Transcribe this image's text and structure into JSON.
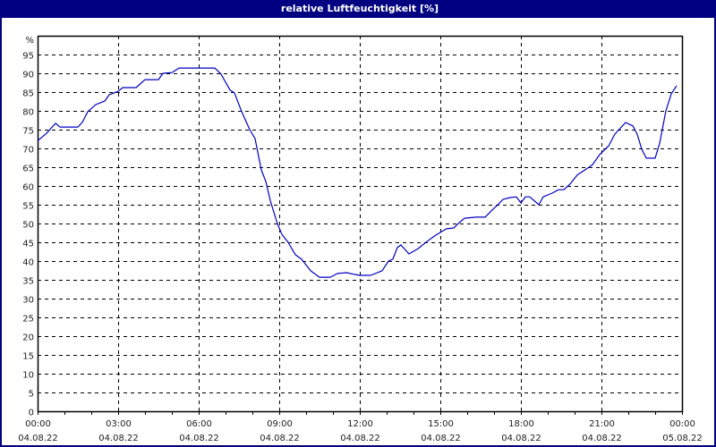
{
  "window": {
    "title": "relative Luftfeuchtigkeit [%]"
  },
  "colors": {
    "titlebar": "#000080",
    "line": "#0000c0",
    "grid": "#000000",
    "background": "#ffffff"
  },
  "chart_data": {
    "type": "line",
    "title": "relative Luftfeuchtigkeit [%]",
    "xlabel": "",
    "ylabel": "%",
    "ylim": [
      0,
      100
    ],
    "xlim_hours": [
      0,
      24
    ],
    "grid": true,
    "legend": null,
    "y_ticks": [
      "0",
      "5",
      "10",
      "15",
      "20",
      "25",
      "30",
      "35",
      "40",
      "45",
      "50",
      "55",
      "60",
      "65",
      "70",
      "75",
      "80",
      "85",
      "90",
      "95"
    ],
    "y_unit_label": "%",
    "x_ticks": [
      {
        "time": "00:00",
        "date": "04.08.22",
        "hour": 0
      },
      {
        "time": "03:00",
        "date": "04.08.22",
        "hour": 3
      },
      {
        "time": "06:00",
        "date": "04.08.22",
        "hour": 6
      },
      {
        "time": "09:00",
        "date": "04.08.22",
        "hour": 9
      },
      {
        "time": "12:00",
        "date": "04.08.22",
        "hour": 12
      },
      {
        "time": "15:00",
        "date": "04.08.22",
        "hour": 15
      },
      {
        "time": "18:00",
        "date": "04.08.22",
        "hour": 18
      },
      {
        "time": "21:00",
        "date": "04.08.22",
        "hour": 21
      },
      {
        "time": "00:00",
        "date": "05.08.22",
        "hour": 24
      }
    ],
    "series": [
      {
        "name": "relative Luftfeuchtigkeit",
        "x_hours": [
          0,
          0.33,
          0.67,
          0.83,
          1.5,
          1.67,
          1.87,
          2.17,
          2.5,
          2.67,
          3.0,
          3.17,
          3.67,
          4.0,
          4.5,
          4.67,
          5.0,
          5.27,
          6.6,
          6.83,
          7.17,
          7.33,
          7.6,
          7.9,
          8.1,
          8.33,
          8.5,
          8.67,
          8.93,
          9.1,
          9.33,
          9.6,
          9.83,
          10.17,
          10.5,
          10.9,
          11.17,
          11.5,
          11.83,
          12.0,
          12.4,
          12.83,
          13.07,
          13.23,
          13.4,
          13.53,
          13.83,
          14.17,
          14.5,
          14.83,
          15.23,
          15.5,
          15.67,
          15.9,
          16.33,
          16.67,
          16.93,
          17.17,
          17.33,
          17.6,
          17.83,
          18.0,
          18.17,
          18.33,
          18.67,
          18.83,
          19.17,
          19.4,
          19.6,
          19.83,
          20.1,
          20.5,
          20.67,
          20.93,
          21.27,
          21.5,
          21.9,
          22.17,
          22.33,
          22.5,
          22.67,
          23.0,
          23.17,
          23.4,
          23.6,
          23.8
        ],
        "values": [
          72,
          74,
          76.7,
          75.7,
          75.7,
          77,
          79.8,
          81.7,
          82.6,
          84.3,
          85.2,
          86.2,
          86.2,
          88.3,
          88.3,
          90,
          90.2,
          91.4,
          91.4,
          89.8,
          85.5,
          84.8,
          79.8,
          75,
          72.6,
          64.3,
          61.2,
          56,
          50,
          47.1,
          45,
          41.7,
          40.5,
          37.4,
          35.7,
          35.7,
          36.7,
          36.9,
          36.4,
          36.2,
          36.2,
          37.4,
          40,
          40.5,
          43.6,
          44.3,
          41.9,
          43.3,
          45.2,
          46.9,
          48.6,
          48.8,
          50,
          51.4,
          51.7,
          51.7,
          53.6,
          55.2,
          56.4,
          56.9,
          57.1,
          55.5,
          57.1,
          57.1,
          55,
          57.1,
          58.1,
          59,
          59,
          60.5,
          62.9,
          64.8,
          65.7,
          68.3,
          70.7,
          73.8,
          76.9,
          76,
          73.8,
          69.8,
          67.4,
          67.4,
          71.4,
          80,
          84.5,
          86.7
        ]
      }
    ]
  }
}
